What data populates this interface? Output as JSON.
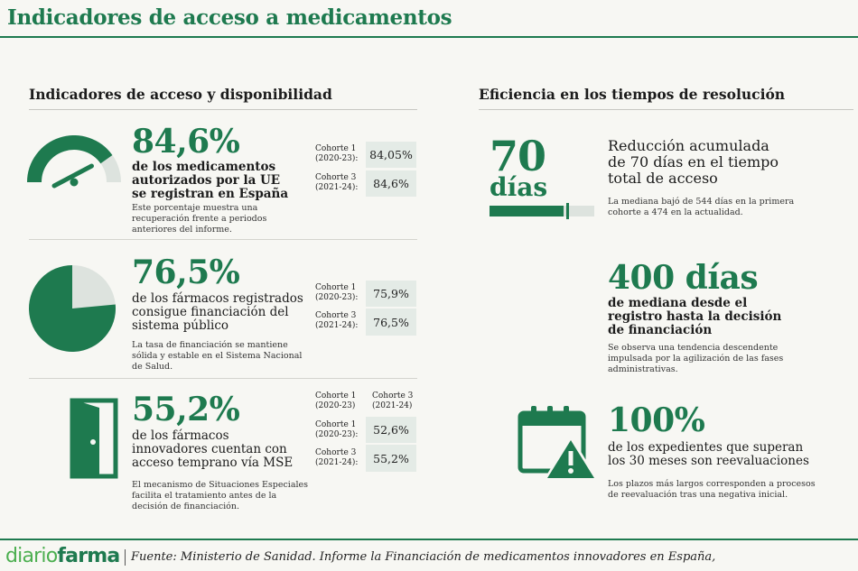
{
  "header": {
    "title": "Indicadores de acceso a medicamentos"
  },
  "left_section": {
    "title": "Indicadores de acceso y disponibilidad",
    "blocks": [
      {
        "value": "84,6%",
        "lead": "de los medicamentos autorizados por la UE se registran en España",
        "note": "Este porcentaje muestra una recuperación frente a periodos anteriores del informe.",
        "rows": [
          {
            "label_1": "Cohorte 1",
            "label_2": "(2020-23):",
            "value": "84,05%"
          },
          {
            "label_1": "Cohorte 3",
            "label_2": "(2021-24):",
            "value": "84,6%"
          }
        ],
        "gauge_fraction": 0.846
      },
      {
        "value": "76,5%",
        "lead": "de los fármacos registrados consigue financiación del sistema público",
        "note": "La tasa de financiación se mantiene sólida y estable en el Sistema Nacional de Salud.",
        "rows": [
          {
            "label_1": "Cohorte 1",
            "label_2": "(2020-23):",
            "value": "75,9%"
          },
          {
            "label_1": "Cohorte 3",
            "label_2": "(2021-24):",
            "value": "76,5%"
          }
        ],
        "pie_fraction": 0.765
      },
      {
        "value": "55,2%",
        "lead": "de los fármacos innovadores cuentan con acceso temprano vía MSE",
        "note": "El mecanismo de Situaciones Especiales facilita el tratamiento antes de la decisión de financiación.",
        "headers": [
          {
            "label_1": "Cohorte 1",
            "label_2": "(2020-23)"
          },
          {
            "label_1": "Cohorte 3",
            "label_2": "(2021-24)"
          }
        ],
        "rows": [
          {
            "label_1": "Cohorte 1",
            "label_2": "(2020-23):",
            "value": "52,6%"
          },
          {
            "label_1": "Cohorte 3",
            "label_2": "(2021-24):",
            "value": "55,2%"
          }
        ]
      }
    ]
  },
  "right_section": {
    "title": "Eficiencia en los tiempos de resolución",
    "blocks": [
      {
        "value": "70",
        "unit": "días",
        "lead": "Reducción acumulada de 70 días en el tiempo total de acceso",
        "note": "La mediana bajó de 544 días en la primera cohorte a 474 en la actualidad.",
        "bar_fraction": 0.871
      },
      {
        "value": "400 días",
        "lead": "de mediana desde el registro hasta la decisión de financiación",
        "note": "Se observa una tendencia descendente impulsada por la agilización de las fases administrativas."
      },
      {
        "value": "100%",
        "lead": "de los expedientes que superan los 30 meses son reevaluaciones",
        "note": "Los plazos más largos corresponden a procesos de reevaluación tras una negativa inicial."
      }
    ]
  },
  "footer": {
    "logo_part1": "diario",
    "logo_part2": "farma",
    "source": "Fuente: Ministerio de Sanidad. Informe la Financiación de medicamentos innovadores en España,"
  },
  "colors": {
    "accent": "#1e7a4f",
    "light": "#e4ebe6",
    "logo_light": "#4caf50"
  },
  "icons": [
    "gauge-icon",
    "pie-icon",
    "door-icon",
    "calendar-warning-icon"
  ]
}
